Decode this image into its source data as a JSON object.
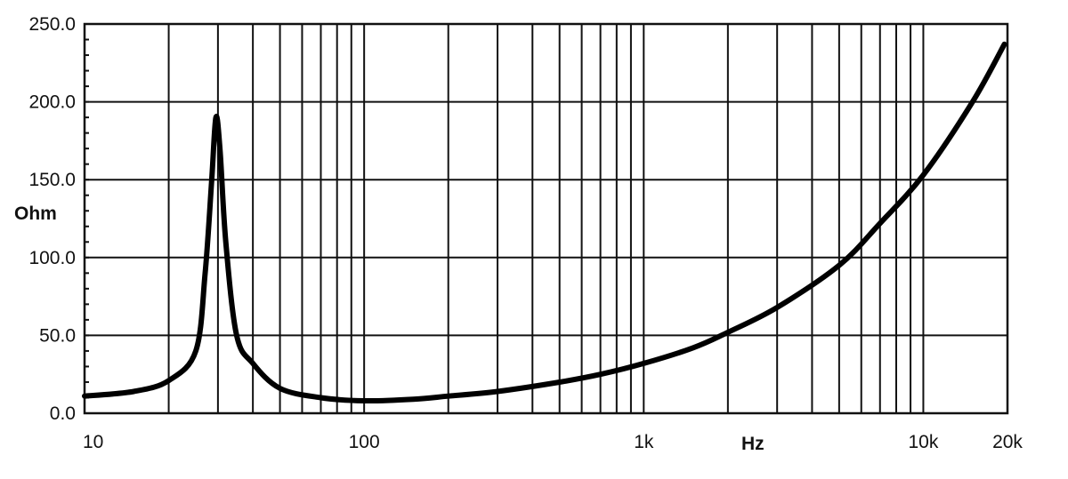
{
  "chart_data": {
    "type": "line",
    "title": "",
    "xlabel": "Hz",
    "ylabel": "Ohm",
    "x_scale": "log",
    "xlim": [
      10,
      20000
    ],
    "ylim": [
      0,
      250
    ],
    "grid": true,
    "legend": "none",
    "x_ticks": [
      {
        "value": 10,
        "label": "10"
      },
      {
        "value": 100,
        "label": "100"
      },
      {
        "value": 1000,
        "label": "1k"
      },
      {
        "value": 10000,
        "label": "10k"
      },
      {
        "value": 20000,
        "label": "20k"
      }
    ],
    "y_ticks": [
      {
        "value": 0,
        "label": "0.0"
      },
      {
        "value": 50,
        "label": "50.0"
      },
      {
        "value": 100,
        "label": "100.0"
      },
      {
        "value": 150,
        "label": "150.0"
      },
      {
        "value": 200,
        "label": "200.0"
      },
      {
        "value": 250,
        "label": "250.0"
      }
    ],
    "series": [
      {
        "color": "#000000",
        "x": [
          10,
          15,
          20,
          25,
          27,
          28.5,
          29.5,
          30.5,
          32,
          35,
          40,
          50,
          70,
          100,
          150,
          200,
          300,
          500,
          700,
          1000,
          1500,
          2000,
          3000,
          5000,
          7000,
          10000,
          15000,
          19500
        ],
        "y": [
          11,
          14,
          21,
          40,
          90,
          150,
          190,
          170,
          110,
          50,
          32,
          16,
          10,
          8,
          9,
          11,
          14,
          20,
          25,
          32,
          42,
          52,
          68,
          95,
          122,
          153,
          200,
          237
        ]
      }
    ]
  }
}
